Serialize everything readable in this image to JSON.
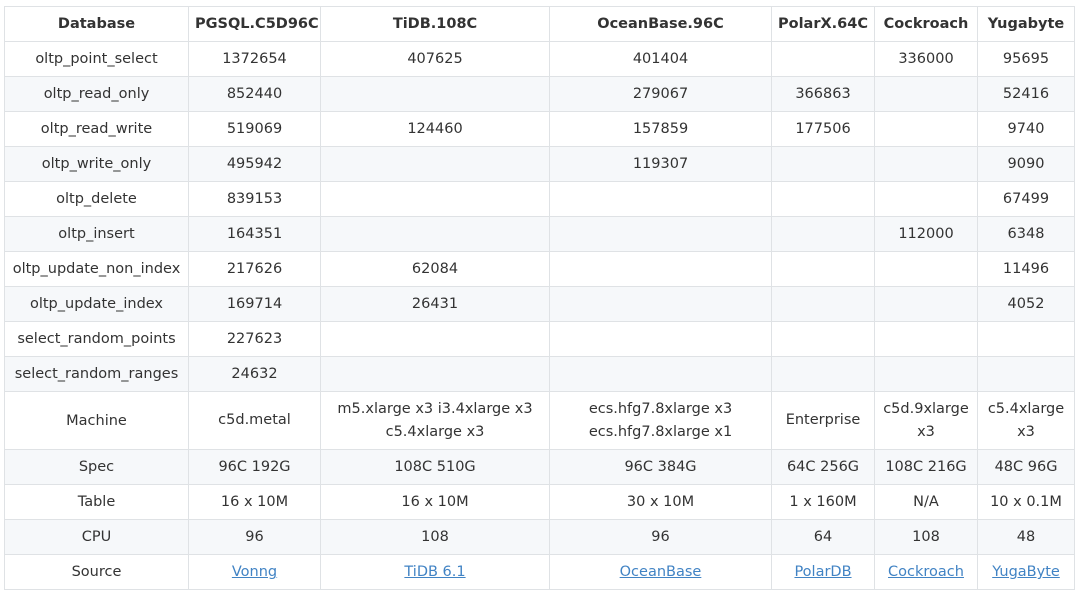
{
  "table": {
    "columns": [
      "Database",
      "PGSQL.C5D96C",
      "TiDB.108C",
      "OceanBase.96C",
      "PolarX.64C",
      "Cockroach",
      "Yugabyte"
    ],
    "rows": [
      [
        "oltp_point_select",
        "1372654",
        "407625",
        "401404",
        "",
        "336000",
        "95695"
      ],
      [
        "oltp_read_only",
        "852440",
        "",
        "279067",
        "366863",
        "",
        "52416"
      ],
      [
        "oltp_read_write",
        "519069",
        "124460",
        "157859",
        "177506",
        "",
        "9740"
      ],
      [
        "oltp_write_only",
        "495942",
        "",
        "119307",
        "",
        "",
        "9090"
      ],
      [
        "oltp_delete",
        "839153",
        "",
        "",
        "",
        "",
        "67499"
      ],
      [
        "oltp_insert",
        "164351",
        "",
        "",
        "",
        "112000",
        "6348"
      ],
      [
        "oltp_update_non_index",
        "217626",
        "62084",
        "",
        "",
        "",
        "11496"
      ],
      [
        "oltp_update_index",
        "169714",
        "26431",
        "",
        "",
        "",
        "4052"
      ],
      [
        "select_random_points",
        "227623",
        "",
        "",
        "",
        "",
        ""
      ],
      [
        "select_random_ranges",
        "24632",
        "",
        "",
        "",
        "",
        ""
      ]
    ],
    "machine": {
      "label": "Machine",
      "pgsql": "c5d.metal",
      "tidb": "m5.xlarge x3     i3.4xlarge x3 c5.4xlarge x3",
      "oceanbase": "ecs.hfg7.8xlarge x3 ecs.hfg7.8xlarge x1",
      "polarx": "Enterprise",
      "cockroach": "c5d.9xlarge x3",
      "yugabyte": "c5.4xlarge x3"
    },
    "spec_rows": [
      [
        "Spec",
        "96C 192G",
        "108C 510G",
        "96C 384G",
        "64C 256G",
        "108C 216G",
        "48C 96G"
      ],
      [
        "Table",
        "16 x 10M",
        "16 x 10M",
        "30 x 10M",
        "1 x 160M",
        "N/A",
        "10 x 0.1M"
      ],
      [
        "CPU",
        "96",
        "108",
        "96",
        "64",
        "108",
        "48"
      ]
    ],
    "source": {
      "label": "Source",
      "links": [
        "Vonng",
        "TiDB 6.1",
        "OceanBase",
        "PolarDB",
        "Cockroach",
        "YugaByte"
      ]
    }
  },
  "colors": {
    "border": "#dfe2e5",
    "stripe": "#f6f8fa",
    "text": "#333333",
    "link": "#4183c4"
  }
}
